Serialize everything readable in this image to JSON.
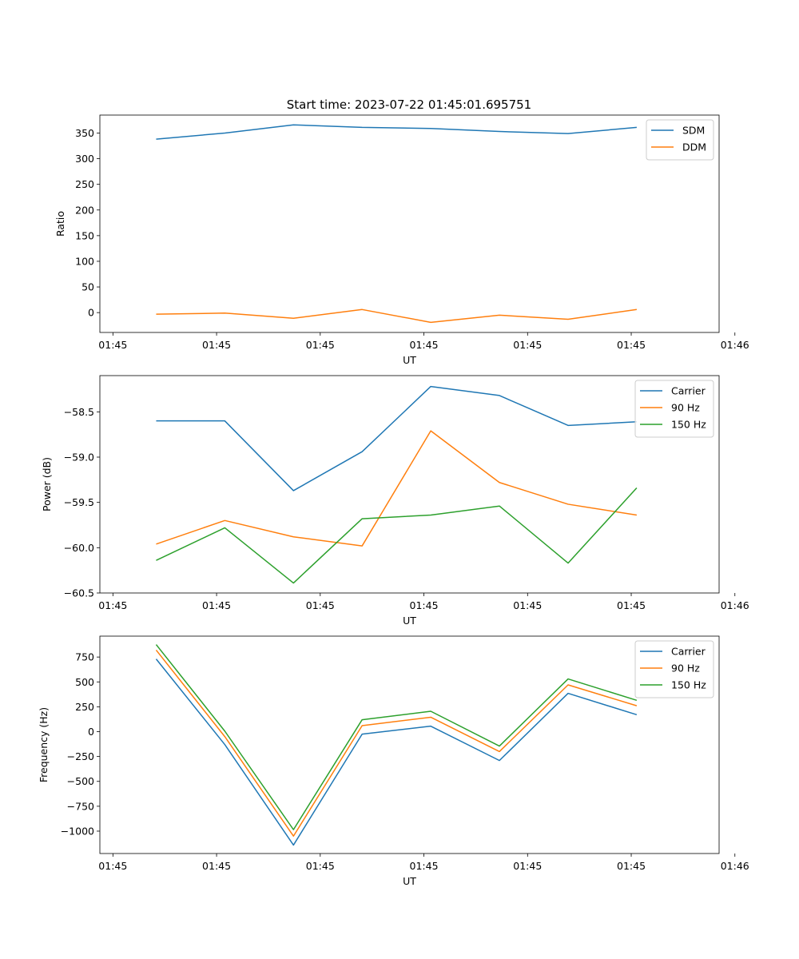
{
  "title": "Start time: 2023-07-22 01:45:01.695751",
  "chart_data": [
    {
      "type": "line",
      "xlabel": "UT",
      "ylabel": "Ratio",
      "x": [
        1,
        2,
        3,
        4,
        5,
        6,
        7,
        8
      ],
      "xlim": [
        0.18,
        9.2
      ],
      "xticks": [
        0.37,
        1.88,
        3.39,
        4.9,
        6.41,
        7.92,
        9.43
      ],
      "xticklabels": [
        "01:45",
        "01:45",
        "01:45",
        "01:45",
        "01:45",
        "01:45",
        "01:46"
      ],
      "ylim": [
        -38.7,
        385
      ],
      "yticks": [
        0,
        50,
        100,
        150,
        200,
        250,
        300,
        350
      ],
      "yticklabels": [
        "0",
        "50",
        "100",
        "150",
        "200",
        "250",
        "300",
        "350"
      ],
      "series": [
        {
          "name": "SDM",
          "color": "#1f77b4",
          "values": [
            338,
            350,
            366,
            361,
            359,
            353,
            349,
            361
          ]
        },
        {
          "name": "DDM",
          "color": "#ff7f0e",
          "values": [
            -3,
            -1,
            -11,
            6,
            -19,
            -5,
            -13,
            6
          ]
        }
      ]
    },
    {
      "type": "line",
      "xlabel": "UT",
      "ylabel": "Power (dB)",
      "x": [
        1,
        2,
        3,
        4,
        5,
        6,
        7,
        8
      ],
      "xlim": [
        0.18,
        9.2
      ],
      "xticks": [
        0.37,
        1.88,
        3.39,
        4.9,
        6.41,
        7.92,
        9.43
      ],
      "xticklabels": [
        "01:45",
        "01:45",
        "01:45",
        "01:45",
        "01:45",
        "01:45",
        "01:46"
      ],
      "ylim": [
        -60.5,
        -58.1
      ],
      "yticks": [
        -60.5,
        -60.0,
        -59.5,
        -59.0,
        -58.5
      ],
      "yticklabels": [
        "−60.5",
        "−60.0",
        "−59.5",
        "−59.0",
        "−58.5"
      ],
      "series": [
        {
          "name": "Carrier",
          "color": "#1f77b4",
          "values": [
            -58.6,
            -58.6,
            -59.37,
            -58.94,
            -58.22,
            -58.32,
            -58.65,
            -58.61
          ]
        },
        {
          "name": "90 Hz",
          "color": "#ff7f0e",
          "values": [
            -59.96,
            -59.7,
            -59.88,
            -59.98,
            -58.71,
            -59.28,
            -59.52,
            -59.64
          ]
        },
        {
          "name": "150 Hz",
          "color": "#2ca02c",
          "values": [
            -60.14,
            -59.78,
            -60.39,
            -59.68,
            -59.64,
            -59.54,
            -60.17,
            -59.34
          ]
        }
      ]
    },
    {
      "type": "line",
      "xlabel": "UT",
      "ylabel": "Frequency (Hz)",
      "x": [
        1,
        2,
        3,
        4,
        5,
        6,
        7,
        8
      ],
      "xlim": [
        0.18,
        9.2
      ],
      "xticks": [
        0.37,
        1.88,
        3.39,
        4.9,
        6.41,
        7.92,
        9.43
      ],
      "xticklabels": [
        "01:45",
        "01:45",
        "01:45",
        "01:45",
        "01:45",
        "01:45",
        "01:46"
      ],
      "ylim": [
        -1225,
        960
      ],
      "yticks": [
        -1000,
        -750,
        -500,
        -250,
        0,
        250,
        500,
        750
      ],
      "yticklabels": [
        "−1000",
        "−750",
        "−500",
        "−250",
        "0",
        "250",
        "500",
        "750"
      ],
      "series": [
        {
          "name": "Carrier",
          "color": "#1f77b4",
          "values": [
            730,
            -130,
            -1140,
            -25,
            55,
            -290,
            385,
            170
          ]
        },
        {
          "name": "90 Hz",
          "color": "#ff7f0e",
          "values": [
            820,
            -50,
            -1050,
            60,
            145,
            -200,
            470,
            260
          ]
        },
        {
          "name": "150 Hz",
          "color": "#2ca02c",
          "values": [
            875,
            5,
            -985,
            120,
            205,
            -145,
            530,
            315
          ]
        }
      ]
    }
  ]
}
